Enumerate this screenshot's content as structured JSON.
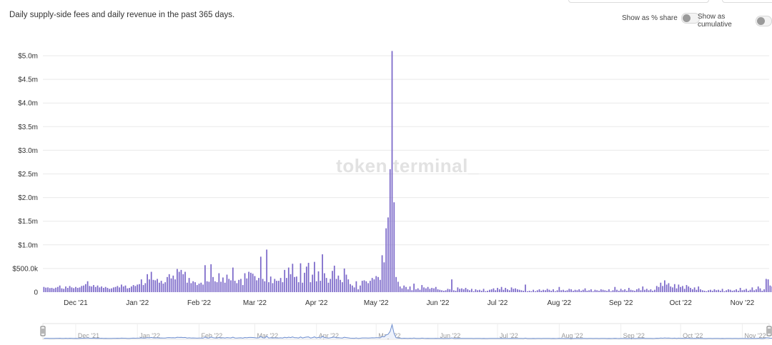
{
  "subtitle": "Daily supply-side fees and daily revenue in the past 365 days.",
  "controls": {
    "share_label": "Show as % share",
    "cumulative_label": "Show as cumulative"
  },
  "watermark": "token terminal_",
  "colors": {
    "bar": "#7b68c9",
    "grid": "#e9e9e9",
    "navigator_line": "#6f8fcf"
  },
  "chart_data": {
    "type": "bar",
    "title": "",
    "xlabel": "",
    "ylabel": "",
    "y_ticks": [
      "0",
      "$500.0k",
      "$1.0m",
      "$1.5m",
      "$2.0m",
      "$2.5m",
      "$3.0m",
      "$3.5m",
      "$4.0m",
      "$4.5m",
      "$5.0m"
    ],
    "ylim": [
      0,
      5000000
    ],
    "x_ticks": [
      "Dec '21",
      "Jan '22",
      "Feb '22",
      "Mar '22",
      "Apr '22",
      "May '22",
      "Jun '22",
      "Jul '22",
      "Aug '22",
      "Sep '22",
      "Oct '22",
      "Nov '22"
    ],
    "x_start": "2021-11-15",
    "x_end": "2022-11-14",
    "grid": true,
    "navigator": true,
    "series": [
      {
        "unit": "USD",
        "values": [
          110000,
          95000,
          100000,
          85000,
          90000,
          75000,
          95000,
          110000,
          140000,
          80000,
          70000,
          120000,
          90000,
          130000,
          100000,
          85000,
          110000,
          90000,
          100000,
          130000,
          140000,
          170000,
          230000,
          130000,
          120000,
          150000,
          110000,
          140000,
          100000,
          120000,
          90000,
          110000,
          90000,
          70000,
          80000,
          100000,
          110000,
          130000,
          100000,
          160000,
          120000,
          140000,
          80000,
          90000,
          120000,
          150000,
          130000,
          160000,
          170000,
          270000,
          150000,
          190000,
          380000,
          270000,
          430000,
          260000,
          250000,
          280000,
          200000,
          240000,
          180000,
          210000,
          320000,
          380000,
          290000,
          350000,
          270000,
          490000,
          430000,
          470000,
          380000,
          430000,
          200000,
          300000,
          190000,
          230000,
          210000,
          150000,
          180000,
          200000,
          160000,
          570000,
          230000,
          220000,
          590000,
          320000,
          230000,
          210000,
          400000,
          220000,
          310000,
          200000,
          370000,
          280000,
          250000,
          520000,
          240000,
          190000,
          260000,
          280000,
          150000,
          400000,
          290000,
          430000,
          410000,
          390000,
          340000,
          250000,
          300000,
          750000,
          280000,
          230000,
          900000,
          210000,
          330000,
          190000,
          280000,
          240000,
          240000,
          300000,
          210000,
          470000,
          300000,
          520000,
          380000,
          600000,
          320000,
          330000,
          210000,
          610000,
          200000,
          410000,
          540000,
          620000,
          210000,
          370000,
          640000,
          230000,
          440000,
          240000,
          800000,
          400000,
          300000,
          200000,
          280000,
          450000,
          560000,
          280000,
          350000,
          260000,
          210000,
          500000,
          370000,
          270000,
          170000,
          140000,
          100000,
          230000,
          60000,
          140000,
          240000,
          250000,
          230000,
          190000,
          240000,
          300000,
          270000,
          340000,
          320000,
          260000,
          780000,
          630000,
          1350000,
          1580000,
          2600000,
          5100000,
          1900000,
          320000,
          220000,
          120000,
          80000,
          140000,
          110000,
          60000,
          120000,
          40000,
          180000,
          60000,
          80000,
          50000,
          150000,
          100000,
          80000,
          110000,
          70000,
          90000,
          80000,
          110000,
          60000,
          50000,
          40000,
          30000,
          40000,
          70000,
          60000,
          270000,
          40000,
          30000,
          100000,
          70000,
          80000,
          60000,
          90000,
          60000,
          40000,
          70000,
          20000,
          60000,
          40000,
          50000,
          30000,
          70000,
          20000,
          30000,
          50000,
          60000,
          80000,
          40000,
          90000,
          60000,
          110000,
          50000,
          90000,
          60000,
          40000,
          100000,
          70000,
          80000,
          60000,
          50000,
          40000,
          30000,
          160000,
          20000,
          30000,
          20000,
          50000,
          20000,
          40000,
          60000,
          30000,
          50000,
          40000,
          70000,
          50000,
          30000,
          60000,
          20000,
          40000,
          110000,
          40000,
          50000,
          30000,
          40000,
          70000,
          60000,
          30000,
          50000,
          40000,
          60000,
          30000,
          50000,
          80000,
          30000,
          40000,
          60000,
          20000,
          50000,
          40000,
          30000,
          60000,
          50000,
          40000,
          30000,
          60000,
          20000,
          40000,
          110000,
          50000,
          30000,
          70000,
          40000,
          60000,
          30000,
          90000,
          50000,
          40000,
          30000,
          60000,
          80000,
          40000,
          120000,
          50000,
          70000,
          40000,
          60000,
          30000,
          50000,
          130000,
          110000,
          200000,
          130000,
          250000,
          160000,
          190000,
          120000,
          100000,
          170000,
          80000,
          160000,
          110000,
          130000,
          70000,
          150000,
          120000,
          90000,
          60000,
          100000,
          50000,
          120000,
          60000,
          40000,
          30000,
          20000,
          40000,
          50000,
          30000,
          60000,
          40000,
          50000,
          30000,
          70000,
          20000,
          40000,
          60000,
          50000,
          30000,
          40000,
          60000,
          30000,
          90000,
          40000,
          50000,
          70000,
          30000,
          50000,
          100000,
          40000,
          60000,
          120000,
          80000,
          30000,
          60000,
          280000,
          270000,
          140000,
          120000,
          90000,
          100000,
          60000,
          130000,
          70000,
          100000,
          120000
        ]
      }
    ]
  }
}
